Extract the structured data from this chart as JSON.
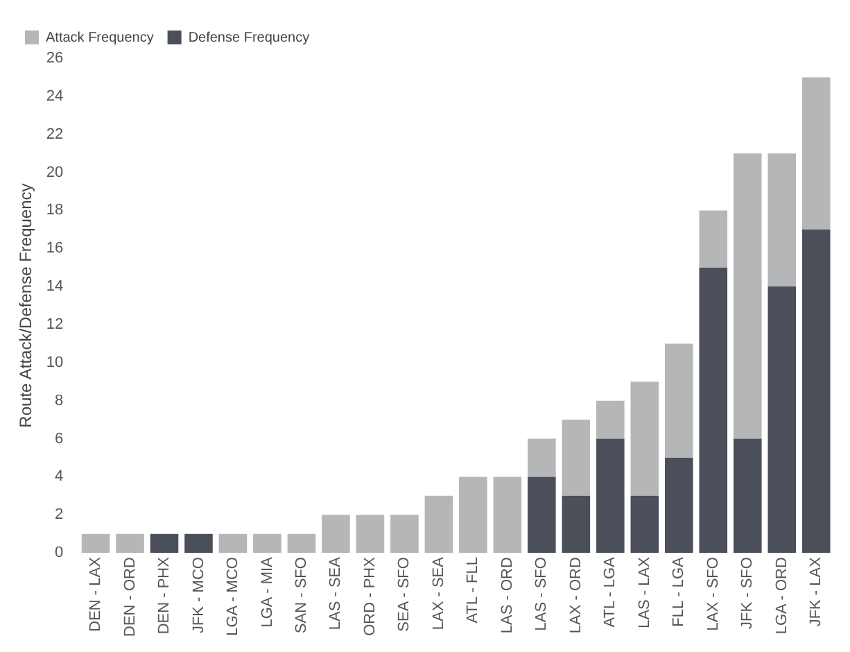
{
  "chart_data": {
    "type": "bar",
    "ylabel": "Route Attack/Defense Frequency",
    "stacked": true,
    "legend": "top left",
    "grid": false,
    "categories": [
      "DEN - LAX",
      "DEN - ORD",
      "DEN - PHX",
      "JFK - MCO",
      "LGA - MCO",
      "LGA - MIA",
      "SAN - SFO",
      "LAS - SEA",
      "ORD - PHX",
      "SEA - SFO",
      "LAX - SEA",
      "ATL - FLL",
      "LAS - ORD",
      "LAS - SFO",
      "LAX - ORD",
      "ATL - LGA",
      "LAS - LAX",
      "FLL - LGA",
      "LAX - SFO",
      "JFK - SFO",
      "LGA - ORD",
      "JFK - LAX"
    ],
    "series": [
      {
        "name": "Defense Frequency",
        "color": "#4a4f5a",
        "values": [
          0,
          0,
          1,
          1,
          0,
          0,
          0,
          0,
          0,
          0,
          0,
          0,
          0,
          4,
          3,
          6,
          3,
          5,
          15,
          6,
          14,
          17
        ]
      },
      {
        "name": "Attack Frequency",
        "color": "#b4b6b8",
        "values": [
          1,
          1,
          0,
          0,
          1,
          1,
          1,
          2,
          2,
          2,
          3,
          4,
          4,
          2,
          4,
          2,
          6,
          6,
          3,
          15,
          7,
          8
        ]
      }
    ],
    "ylim": [
      0,
      26
    ],
    "yticks": [
      0,
      2,
      4,
      6,
      8,
      10,
      12,
      14,
      16,
      18,
      20,
      22,
      24,
      26
    ]
  }
}
